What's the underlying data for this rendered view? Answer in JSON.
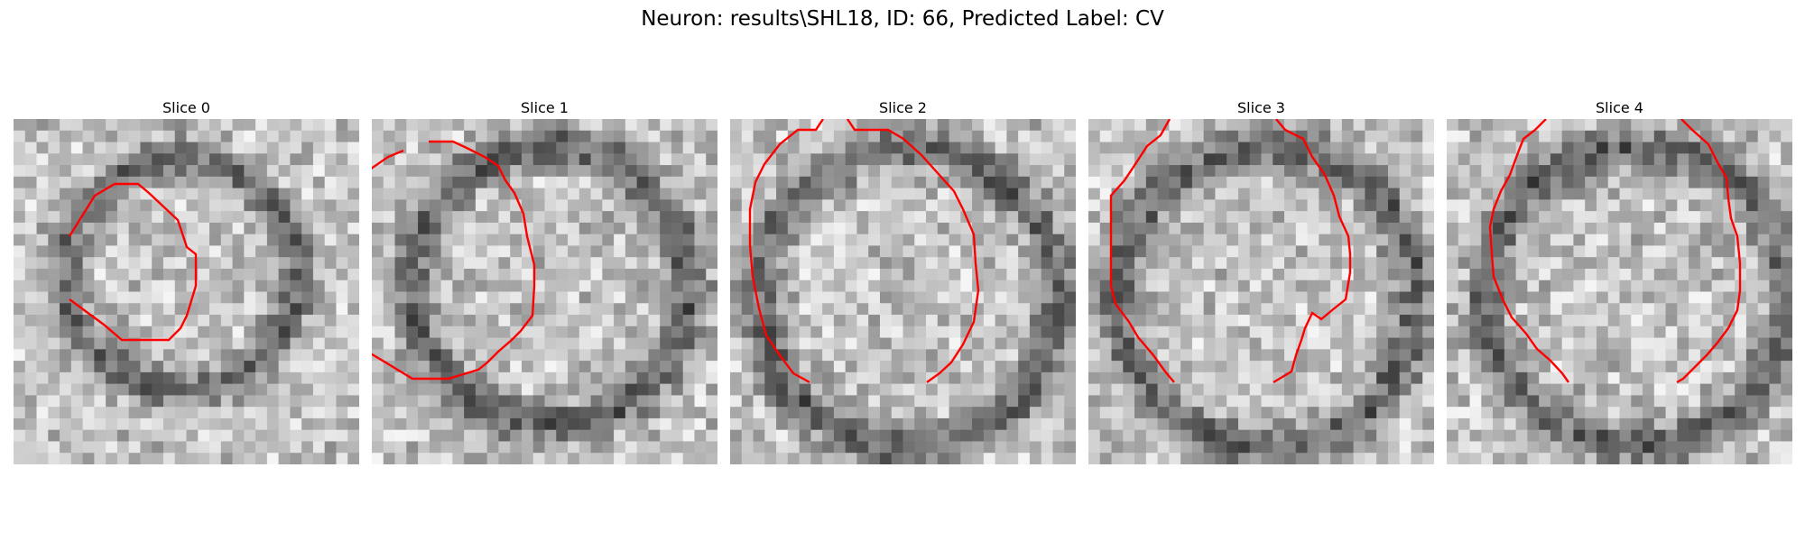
{
  "figure": {
    "title": "Neuron: results\\SHL18, ID: 66, Predicted Label: CV"
  },
  "slices": [
    {
      "label": "Slice 0"
    },
    {
      "label": "Slice 1"
    },
    {
      "label": "Slice 2"
    },
    {
      "label": "Slice 3"
    },
    {
      "label": "Slice 4"
    }
  ],
  "colors": {
    "contour": "#ff0000",
    "background": "#ffffff"
  },
  "colormap": "gray"
}
